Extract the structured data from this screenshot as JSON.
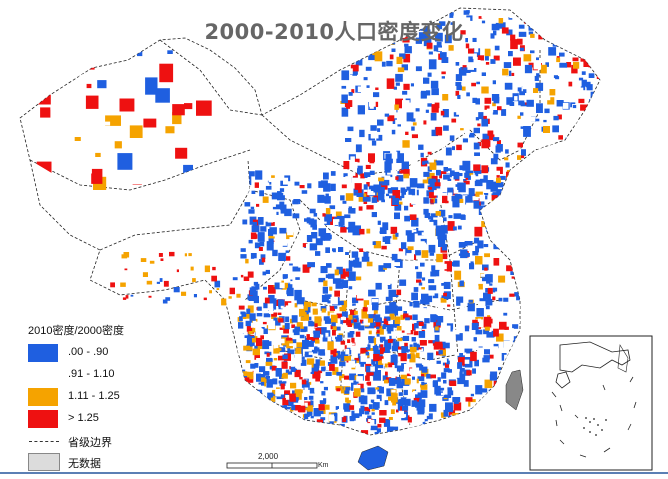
{
  "title": "2000-2010人口密度变化",
  "legend": {
    "heading": "2010密度/2000密度",
    "classes": [
      {
        "label": ".00 - .90",
        "color": "#1f5fe0"
      },
      {
        "label": ".91 - 1.10",
        "color": "#ffffff"
      },
      {
        "label": "1.11 - 1.25",
        "color": "#f5a300"
      },
      {
        "label": "> 1.25",
        "color": "#ee1111"
      }
    ],
    "boundary_label": "省级边界",
    "nodata_label": "无数据",
    "nodata_color": "#dcdcdc"
  },
  "scale_bar": {
    "label": "2,000",
    "unit": "Km"
  }
}
